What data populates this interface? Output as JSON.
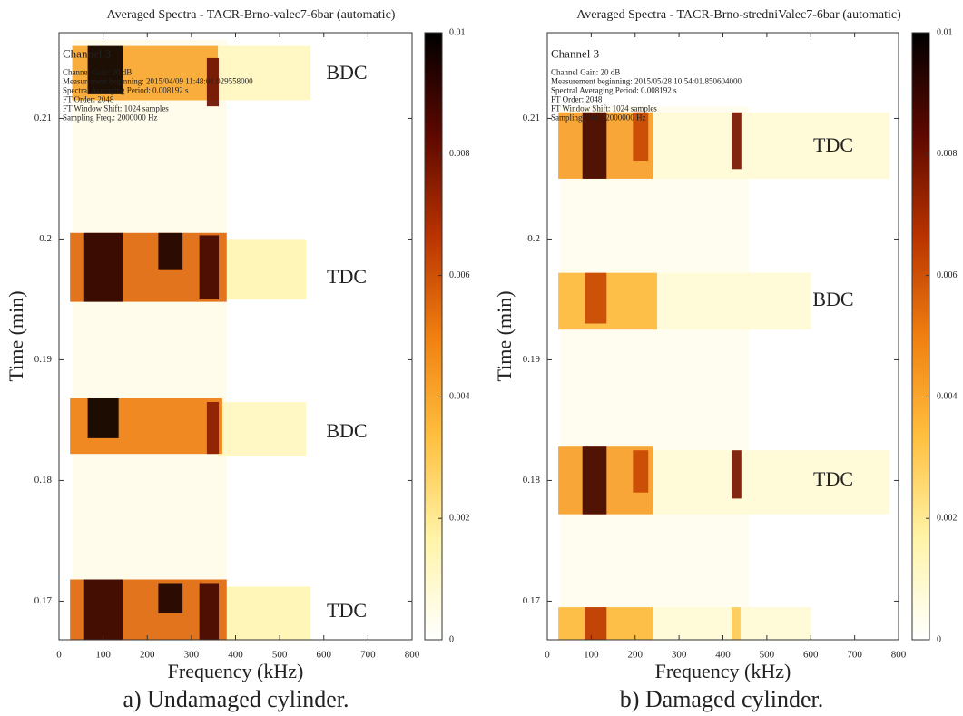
{
  "chart_data": [
    {
      "type": "heatmap",
      "title": "Averaged Spectra - TACR-Brno-valec7-6bar (automatic)",
      "xlabel": "Frequency (kHz)",
      "ylabel": "Time (min)",
      "caption": "a) Undamaged cylinder.",
      "info": [
        "Channel 3",
        "Channel Gain: 20 dB",
        "Measurement beginning: 2015/04/09 11:48:01.029558000",
        "Spectral Averaging Period: 0.008192 s",
        "FT Order: 2048",
        "FT Window Shift: 1024 samples",
        "Sampling Freq.: 2000000 Hz"
      ],
      "annotations": [
        "BDC",
        "TDC",
        "BDC",
        "TDC"
      ],
      "xlim": [
        0,
        800
      ],
      "xticks": [
        0,
        100,
        200,
        300,
        400,
        500,
        600,
        700,
        800
      ],
      "ylim": [
        0.1668,
        0.2171
      ],
      "yticks": [
        0.17,
        0.18,
        0.19,
        0.2,
        0.21
      ],
      "clim": [
        0,
        0.01
      ],
      "cticks": [
        0,
        0.002,
        0.004,
        0.006,
        0.008,
        0.01
      ],
      "colormap": [
        "#ffffff",
        "#fff4a8",
        "#ffc040",
        "#f07f10",
        "#b83200",
        "#5c0800",
        "#000000"
      ],
      "regions": [
        {
          "x": [
            30,
            380
          ],
          "y": [
            0.1668,
            0.2165
          ],
          "value": 0.0004
        },
        {
          "x": [
            360,
            570
          ],
          "y": [
            0.2115,
            0.216
          ],
          "value": 0.0012
        },
        {
          "x": [
            30,
            360
          ],
          "y": [
            0.2115,
            0.216
          ],
          "value": 0.004
        },
        {
          "x": [
            65,
            145
          ],
          "y": [
            0.212,
            0.216
          ],
          "value": 0.0098
        },
        {
          "x": [
            335,
            362
          ],
          "y": [
            0.211,
            0.215
          ],
          "value": 0.008
        },
        {
          "x": [
            380,
            560
          ],
          "y": [
            0.195,
            0.2
          ],
          "value": 0.0015
        },
        {
          "x": [
            25,
            380
          ],
          "y": [
            0.1948,
            0.2005
          ],
          "value": 0.0055
        },
        {
          "x": [
            55,
            145
          ],
          "y": [
            0.1948,
            0.2005
          ],
          "value": 0.0092
        },
        {
          "x": [
            225,
            280
          ],
          "y": [
            0.1975,
            0.2005
          ],
          "value": 0.0095
        },
        {
          "x": [
            318,
            362
          ],
          "y": [
            0.195,
            0.2003
          ],
          "value": 0.0088
        },
        {
          "x": [
            360,
            560
          ],
          "y": [
            0.182,
            0.1865
          ],
          "value": 0.0012
        },
        {
          "x": [
            25,
            370
          ],
          "y": [
            0.1822,
            0.1868
          ],
          "value": 0.005
        },
        {
          "x": [
            65,
            135
          ],
          "y": [
            0.1835,
            0.1868
          ],
          "value": 0.0098
        },
        {
          "x": [
            335,
            362
          ],
          "y": [
            0.1822,
            0.1865
          ],
          "value": 0.0075
        },
        {
          "x": [
            380,
            570
          ],
          "y": [
            0.1668,
            0.1712
          ],
          "value": 0.0015
        },
        {
          "x": [
            25,
            380
          ],
          "y": [
            0.1668,
            0.1718
          ],
          "value": 0.0055
        },
        {
          "x": [
            55,
            145
          ],
          "y": [
            0.1668,
            0.1718
          ],
          "value": 0.009
        },
        {
          "x": [
            225,
            280
          ],
          "y": [
            0.169,
            0.1715
          ],
          "value": 0.0095
        },
        {
          "x": [
            318,
            362
          ],
          "y": [
            0.1668,
            0.1715
          ],
          "value": 0.0088
        }
      ]
    },
    {
      "type": "heatmap",
      "title": "Averaged Spectra - TACR-Brno-stredniValec7-6bar (automatic)",
      "xlabel": "Frequency (kHz)",
      "ylabel": "Time (min)",
      "caption": "b) Damaged cylinder.",
      "info": [
        "Channel 3",
        "Channel Gain: 20 dB",
        "Measurement beginning: 2015/05/28 10:54:01.850604000",
        "Spectral Averaging Period: 0.008192 s",
        "FT Order: 2048",
        "FT Window Shift: 1024 samples",
        "Sampling Freq.: 2000000 Hz"
      ],
      "annotations": [
        "TDC",
        "BDC",
        "TDC"
      ],
      "xlim": [
        0,
        800
      ],
      "xticks": [
        0,
        100,
        200,
        300,
        400,
        500,
        600,
        700,
        800
      ],
      "ylim": [
        0.1668,
        0.2171
      ],
      "yticks": [
        0.17,
        0.18,
        0.19,
        0.2,
        0.21
      ],
      "clim": [
        0,
        0.01
      ],
      "cticks": [
        0,
        0.002,
        0.004,
        0.006,
        0.008,
        0.01
      ],
      "colormap": [
        "#ffffff",
        "#fff4a8",
        "#ffc040",
        "#f07f10",
        "#b83200",
        "#5c0800",
        "#000000"
      ],
      "regions": [
        {
          "x": [
            30,
            460
          ],
          "y": [
            0.1668,
            0.211
          ],
          "value": 0.0003
        },
        {
          "x": [
            230,
            780
          ],
          "y": [
            0.205,
            0.2105
          ],
          "value": 0.0008
        },
        {
          "x": [
            25,
            240
          ],
          "y": [
            0.205,
            0.2105
          ],
          "value": 0.0042
        },
        {
          "x": [
            80,
            135
          ],
          "y": [
            0.205,
            0.2105
          ],
          "value": 0.0088
        },
        {
          "x": [
            195,
            230
          ],
          "y": [
            0.2065,
            0.2105
          ],
          "value": 0.0062
        },
        {
          "x": [
            420,
            442
          ],
          "y": [
            0.2058,
            0.2105
          ],
          "value": 0.0078
        },
        {
          "x": [
            250,
            600
          ],
          "y": [
            0.1925,
            0.1972
          ],
          "value": 0.0008
        },
        {
          "x": [
            25,
            250
          ],
          "y": [
            0.1925,
            0.1972
          ],
          "value": 0.0035
        },
        {
          "x": [
            85,
            135
          ],
          "y": [
            0.193,
            0.1972
          ],
          "value": 0.0062
        },
        {
          "x": [
            230,
            780
          ],
          "y": [
            0.1772,
            0.1825
          ],
          "value": 0.0008
        },
        {
          "x": [
            25,
            240
          ],
          "y": [
            0.1772,
            0.1828
          ],
          "value": 0.0042
        },
        {
          "x": [
            80,
            135
          ],
          "y": [
            0.1772,
            0.1828
          ],
          "value": 0.0088
        },
        {
          "x": [
            195,
            230
          ],
          "y": [
            0.179,
            0.1825
          ],
          "value": 0.0062
        },
        {
          "x": [
            420,
            442
          ],
          "y": [
            0.1785,
            0.1825
          ],
          "value": 0.0078
        },
        {
          "x": [
            230,
            600
          ],
          "y": [
            0.1668,
            0.1695
          ],
          "value": 0.0008
        },
        {
          "x": [
            25,
            240
          ],
          "y": [
            0.1668,
            0.1695
          ],
          "value": 0.0035
        },
        {
          "x": [
            85,
            135
          ],
          "y": [
            0.1668,
            0.1695
          ],
          "value": 0.0065
        },
        {
          "x": [
            420,
            440
          ],
          "y": [
            0.1668,
            0.1695
          ],
          "value": 0.003
        }
      ]
    }
  ]
}
